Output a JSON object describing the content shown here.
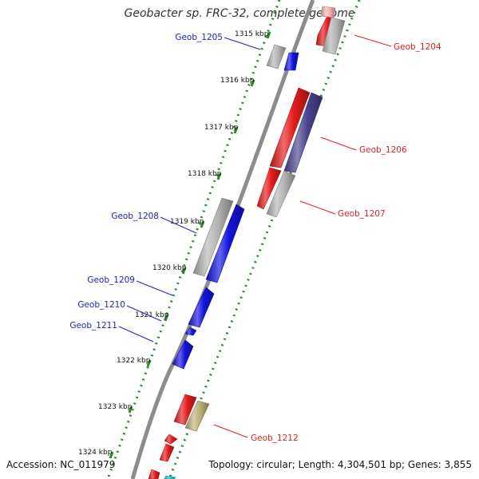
{
  "title": "Geobacter sp. FRC-32, complete genome",
  "footer": {
    "accession": "Accession: NC_011979",
    "summary": "Topology: circular; Length: 4,304,501 bp; Genes: 3,855"
  },
  "colors": {
    "backbone": "#8c8c8c",
    "tick": "#2a8a2a",
    "forward_label": "#2222bb",
    "reverse_label": "#dd2222",
    "gene_red": "#e51b1b",
    "gene_blue": "#1414e0",
    "gene_grey": "#b5b5b5",
    "gene_navy": "#4a438f",
    "gene_khaki": "#bdb27a",
    "gene_pink": "#f7b3b3",
    "gene_cyan": "#19c8d8"
  },
  "scale_labels": [
    "1315 kbp",
    "1316 kbp",
    "1317 kbp",
    "1318 kbp",
    "1319 kbp",
    "1320 kbp",
    "1321 kbp",
    "1322 kbp",
    "1323 kbp",
    "1324 kbp"
  ],
  "gene_labels": [
    {
      "text": "Geob_1204",
      "strand": "reverse"
    },
    {
      "text": "Geob_1205",
      "strand": "forward"
    },
    {
      "text": "Geob_1206",
      "strand": "reverse"
    },
    {
      "text": "Geob_1207",
      "strand": "reverse"
    },
    {
      "text": "Geob_1208",
      "strand": "forward"
    },
    {
      "text": "Geob_1209",
      "strand": "forward"
    },
    {
      "text": "Geob_1210",
      "strand": "forward"
    },
    {
      "text": "Geob_1211",
      "strand": "forward"
    },
    {
      "text": "Geob_1212",
      "strand": "reverse"
    }
  ]
}
